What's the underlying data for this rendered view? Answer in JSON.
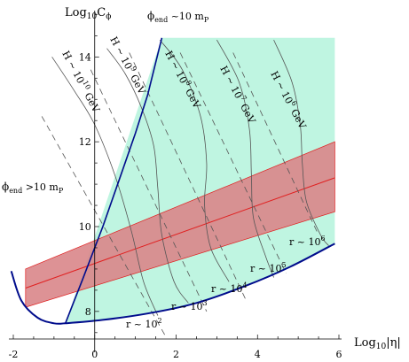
{
  "chart_data": {
    "type": "line",
    "xlabel": "Log",
    "xlabel_sub": "10",
    "xlabel_tail": "|η|",
    "ylabel": "Log",
    "ylabel_sub": "10",
    "ylabel_tail": "C",
    "ylabel_tail_sub": "ϕ",
    "xlim": [
      -2.2,
      6.3
    ],
    "ylim": [
      7.35,
      15.05
    ],
    "x_ticks": [
      -2,
      0,
      2,
      4,
      6
    ],
    "y_ticks": [
      8,
      10,
      12,
      14
    ],
    "x_tick_labels": [
      "-2",
      "0",
      "2",
      "4",
      "6"
    ],
    "y_tick_labels": [
      "8",
      "10",
      "12",
      "14"
    ],
    "region_color": "#bff5e1",
    "band_color": "#d9868a",
    "band_line_color": "#e02020",
    "boundary_color": "#000c8c",
    "allowed_region": [
      [
        -0.72,
        7.72
      ],
      [
        0.2,
        7.8
      ],
      [
        1.3,
        7.95
      ],
      [
        2.5,
        8.2
      ],
      [
        3.7,
        8.6
      ],
      [
        4.8,
        9.05
      ],
      [
        5.9,
        9.6
      ],
      [
        5.9,
        14.45
      ],
      [
        1.65,
        14.45
      ]
    ],
    "phi_end_boundary": [
      [
        -0.72,
        7.72
      ],
      [
        -0.3,
        8.75
      ],
      [
        0.2,
        10.0
      ],
      [
        0.6,
        11.1
      ],
      [
        1.0,
        12.2
      ],
      [
        1.3,
        13.1
      ],
      [
        1.65,
        14.45
      ]
    ],
    "lower_boundary": [
      [
        -2.05,
        8.95
      ],
      [
        -1.8,
        8.25
      ],
      [
        -1.4,
        7.85
      ],
      [
        -1.0,
        7.72
      ],
      [
        -0.72,
        7.72
      ],
      [
        0.2,
        7.8
      ],
      [
        1.3,
        7.95
      ],
      [
        2.5,
        8.2
      ],
      [
        3.7,
        8.6
      ],
      [
        4.8,
        9.05
      ],
      [
        5.9,
        9.6
      ]
    ],
    "band": {
      "center": [
        [
          -1.7,
          8.55
        ],
        [
          5.9,
          11.15
        ]
      ],
      "upper": [
        [
          -1.7,
          9.0
        ],
        [
          5.9,
          12.0
        ]
      ],
      "lower": [
        [
          -1.7,
          8.1
        ],
        [
          5.9,
          10.35
        ]
      ]
    },
    "H_contours": [
      {
        "label": "H ~ 10",
        "exp": "10",
        "unit": "GeV",
        "points": [
          [
            -1.05,
            14.0
          ],
          [
            -0.5,
            13.2
          ],
          [
            0.0,
            12.4
          ],
          [
            0.5,
            11.2
          ],
          [
            0.9,
            9.9
          ],
          [
            1.2,
            8.7
          ],
          [
            1.55,
            7.9
          ]
        ]
      },
      {
        "label": "H ~ 10",
        "exp": "9",
        "unit": "GeV",
        "points": [
          [
            0.3,
            14.2
          ],
          [
            0.75,
            13.6
          ],
          [
            1.15,
            12.8
          ],
          [
            1.45,
            11.9
          ],
          [
            1.55,
            10.9
          ],
          [
            1.65,
            9.8
          ],
          [
            1.95,
            8.7
          ],
          [
            2.3,
            8.2
          ]
        ]
      },
      {
        "label": "H ~ 10",
        "exp": "8",
        "unit": "GeV",
        "points": [
          [
            1.6,
            14.4
          ],
          [
            2.15,
            13.7
          ],
          [
            2.6,
            12.6
          ],
          [
            2.75,
            11.5
          ],
          [
            2.7,
            10.5
          ],
          [
            2.85,
            9.5
          ],
          [
            3.3,
            8.7
          ]
        ]
      },
      {
        "label": "H ~ 10",
        "exp": "7",
        "unit": "GeV",
        "points": [
          [
            3.0,
            14.4
          ],
          [
            3.55,
            13.4
          ],
          [
            3.8,
            12.3
          ],
          [
            3.85,
            11.2
          ],
          [
            3.9,
            10.2
          ],
          [
            4.2,
            9.3
          ],
          [
            4.4,
            8.8
          ]
        ]
      },
      {
        "label": "H ~ 10",
        "exp": "6",
        "unit": "GeV",
        "points": [
          [
            4.4,
            14.4
          ],
          [
            4.85,
            13.4
          ],
          [
            5.05,
            12.4
          ],
          [
            5.1,
            11.5
          ],
          [
            5.2,
            10.6
          ],
          [
            5.55,
            9.8
          ],
          [
            5.75,
            9.55
          ]
        ]
      }
    ],
    "r_contours": [
      {
        "label": "r ~ 10",
        "exp": "2",
        "points": [
          [
            -1.3,
            12.6
          ],
          [
            1.75,
            7.4
          ]
        ]
      },
      {
        "label": "r ~ 10",
        "exp": "3",
        "points": [
          [
            -0.1,
            13.7
          ],
          [
            2.75,
            8.0
          ]
        ]
      },
      {
        "label": "r ~ 10",
        "exp": "4",
        "points": [
          [
            0.85,
            14.1
          ],
          [
            3.7,
            8.3
          ]
        ]
      },
      {
        "label": "r ~ 10",
        "exp": "5",
        "points": [
          [
            2.1,
            14.1
          ],
          [
            4.7,
            8.9
          ]
        ]
      },
      {
        "label": "r ~ 10",
        "exp": "6",
        "points": [
          [
            3.4,
            14.1
          ],
          [
            5.5,
            9.8
          ]
        ]
      }
    ],
    "annotations": {
      "phi_top": {
        "text": "ϕ",
        "sub": "end",
        "tail": " ~10 m",
        "tail_sub": "P"
      },
      "phi_left": {
        "text": "ϕ",
        "sub": "end",
        "tail": " >10 m",
        "tail_sub": "P"
      }
    }
  }
}
